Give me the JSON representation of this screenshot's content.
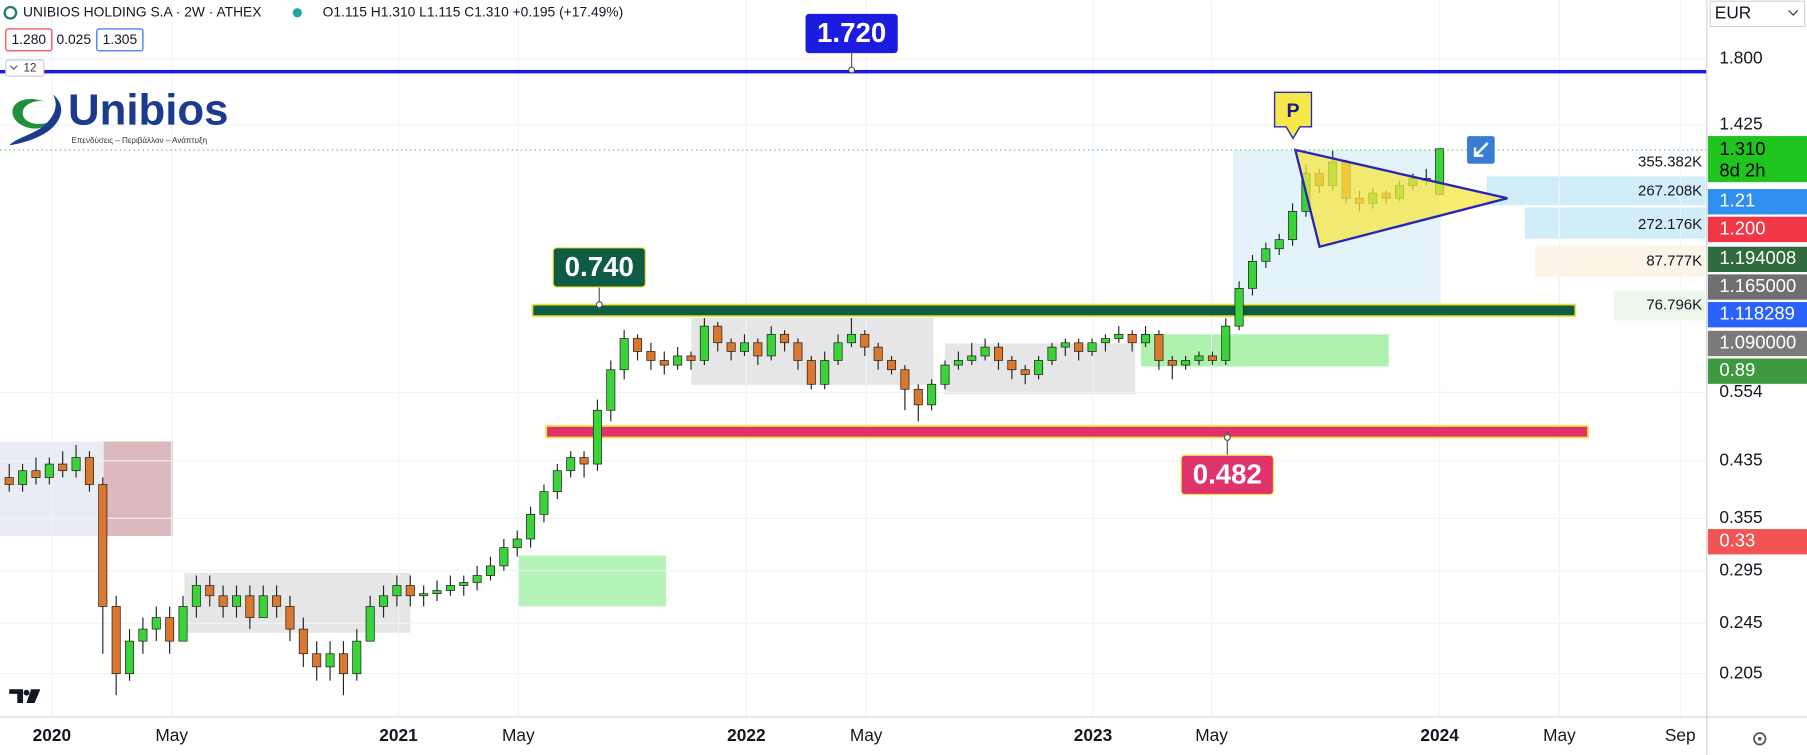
{
  "header": {
    "symbol": "UNIBIOS HOLDING S.A · 2W · ATHEX",
    "ohlc": "O1.115 H1.310 L1.115 C1.310 +0.195 (+17.49%)",
    "bid": "1.280",
    "spread": "0.025",
    "ask": "1.305",
    "indicators": "12"
  },
  "logo": {
    "name": "Unibios",
    "tagline": "Επενδύσεις – Περιβάλλον – Ανάπτυξη"
  },
  "currency": "EUR",
  "chart_data": {
    "type": "candlestick",
    "log_scale": true,
    "grid": true,
    "up_color": "#3ad43a",
    "down_color": "#d9782e",
    "ylim": [
      0.176,
      2.215
    ],
    "yticks": [
      {
        "value": 1.8,
        "label": "1.800"
      },
      1.425,
      0.554,
      0.435,
      0.355,
      0.295,
      0.245,
      0.205
    ],
    "xlim": [
      -0.69,
      126.98
    ],
    "xticks": [
      {
        "value": 3.19,
        "label": "2020"
      },
      {
        "value": 12.15,
        "label": "May"
      },
      {
        "value": 29.12,
        "label": "2021"
      },
      {
        "value": 38.08,
        "label": "May"
      },
      {
        "value": 55.14,
        "label": "2022"
      },
      {
        "value": 64.1,
        "label": "May"
      },
      {
        "value": 81.07,
        "label": "2023"
      },
      {
        "value": 89.94,
        "label": "May"
      },
      {
        "value": 107.0,
        "label": "2024"
      },
      {
        "value": 115.96,
        "label": "May"
      },
      {
        "value": 125.0,
        "label": "Sep"
      }
    ],
    "candles": [
      [
        0.41,
        0.43,
        0.39,
        0.4
      ],
      [
        0.4,
        0.43,
        0.39,
        0.42
      ],
      [
        0.42,
        0.44,
        0.4,
        0.41
      ],
      [
        0.41,
        0.44,
        0.4,
        0.43
      ],
      [
        0.43,
        0.45,
        0.41,
        0.42
      ],
      [
        0.42,
        0.46,
        0.41,
        0.44
      ],
      [
        0.44,
        0.45,
        0.39,
        0.4
      ],
      [
        0.4,
        0.41,
        0.22,
        0.26
      ],
      [
        0.26,
        0.27,
        0.19,
        0.205
      ],
      [
        0.205,
        0.24,
        0.2,
        0.23
      ],
      [
        0.23,
        0.25,
        0.22,
        0.24
      ],
      [
        0.24,
        0.26,
        0.23,
        0.25
      ],
      [
        0.25,
        0.26,
        0.22,
        0.23
      ],
      [
        0.23,
        0.27,
        0.23,
        0.26
      ],
      [
        0.26,
        0.29,
        0.25,
        0.28
      ],
      [
        0.28,
        0.29,
        0.26,
        0.27
      ],
      [
        0.27,
        0.28,
        0.25,
        0.26
      ],
      [
        0.26,
        0.28,
        0.25,
        0.27
      ],
      [
        0.27,
        0.28,
        0.24,
        0.25
      ],
      [
        0.25,
        0.28,
        0.25,
        0.27
      ],
      [
        0.27,
        0.28,
        0.25,
        0.26
      ],
      [
        0.26,
        0.27,
        0.23,
        0.24
      ],
      [
        0.24,
        0.25,
        0.21,
        0.22
      ],
      [
        0.22,
        0.23,
        0.2,
        0.21
      ],
      [
        0.21,
        0.23,
        0.2,
        0.22
      ],
      [
        0.22,
        0.23,
        0.19,
        0.205
      ],
      [
        0.205,
        0.24,
        0.2,
        0.23
      ],
      [
        0.23,
        0.27,
        0.23,
        0.26
      ],
      [
        0.26,
        0.28,
        0.25,
        0.27
      ],
      [
        0.27,
        0.29,
        0.26,
        0.28
      ],
      [
        0.28,
        0.29,
        0.26,
        0.27
      ],
      [
        0.27,
        0.28,
        0.26,
        0.272
      ],
      [
        0.272,
        0.285,
        0.265,
        0.275
      ],
      [
        0.275,
        0.29,
        0.27,
        0.28
      ],
      [
        0.28,
        0.29,
        0.27,
        0.283
      ],
      [
        0.283,
        0.3,
        0.275,
        0.29
      ],
      [
        0.29,
        0.31,
        0.285,
        0.3
      ],
      [
        0.3,
        0.33,
        0.295,
        0.32
      ],
      [
        0.32,
        0.34,
        0.31,
        0.33
      ],
      [
        0.33,
        0.37,
        0.32,
        0.36
      ],
      [
        0.36,
        0.4,
        0.35,
        0.39
      ],
      [
        0.39,
        0.43,
        0.38,
        0.42
      ],
      [
        0.42,
        0.45,
        0.41,
        0.44
      ],
      [
        0.44,
        0.45,
        0.41,
        0.43
      ],
      [
        0.43,
        0.54,
        0.42,
        0.52
      ],
      [
        0.52,
        0.62,
        0.5,
        0.6
      ],
      [
        0.6,
        0.69,
        0.58,
        0.67
      ],
      [
        0.67,
        0.68,
        0.62,
        0.64
      ],
      [
        0.64,
        0.66,
        0.6,
        0.62
      ],
      [
        0.62,
        0.64,
        0.59,
        0.61
      ],
      [
        0.61,
        0.65,
        0.6,
        0.63
      ],
      [
        0.63,
        0.64,
        0.6,
        0.62
      ],
      [
        0.62,
        0.72,
        0.61,
        0.7
      ],
      [
        0.7,
        0.71,
        0.64,
        0.66
      ],
      [
        0.66,
        0.67,
        0.62,
        0.64
      ],
      [
        0.64,
        0.68,
        0.63,
        0.66
      ],
      [
        0.66,
        0.67,
        0.61,
        0.63
      ],
      [
        0.63,
        0.7,
        0.62,
        0.68
      ],
      [
        0.68,
        0.69,
        0.64,
        0.66
      ],
      [
        0.66,
        0.67,
        0.6,
        0.62
      ],
      [
        0.62,
        0.63,
        0.56,
        0.57
      ],
      [
        0.57,
        0.64,
        0.56,
        0.62
      ],
      [
        0.62,
        0.68,
        0.61,
        0.66
      ],
      [
        0.66,
        0.72,
        0.65,
        0.68
      ],
      [
        0.68,
        0.69,
        0.63,
        0.65
      ],
      [
        0.65,
        0.66,
        0.6,
        0.62
      ],
      [
        0.62,
        0.63,
        0.59,
        0.6
      ],
      [
        0.6,
        0.61,
        0.52,
        0.56
      ],
      [
        0.56,
        0.57,
        0.5,
        0.53
      ],
      [
        0.53,
        0.58,
        0.52,
        0.57
      ],
      [
        0.57,
        0.62,
        0.56,
        0.61
      ],
      [
        0.61,
        0.64,
        0.6,
        0.62
      ],
      [
        0.62,
        0.66,
        0.61,
        0.63
      ],
      [
        0.63,
        0.67,
        0.62,
        0.65
      ],
      [
        0.65,
        0.66,
        0.6,
        0.62
      ],
      [
        0.62,
        0.63,
        0.58,
        0.6
      ],
      [
        0.6,
        0.61,
        0.57,
        0.59
      ],
      [
        0.59,
        0.63,
        0.58,
        0.62
      ],
      [
        0.62,
        0.66,
        0.61,
        0.65
      ],
      [
        0.65,
        0.67,
        0.63,
        0.66
      ],
      [
        0.66,
        0.67,
        0.62,
        0.64
      ],
      [
        0.64,
        0.67,
        0.63,
        0.66
      ],
      [
        0.66,
        0.68,
        0.64,
        0.67
      ],
      [
        0.67,
        0.7,
        0.66,
        0.68
      ],
      [
        0.68,
        0.69,
        0.64,
        0.66
      ],
      [
        0.66,
        0.7,
        0.65,
        0.68
      ],
      [
        0.68,
        0.69,
        0.6,
        0.62
      ],
      [
        0.62,
        0.63,
        0.58,
        0.61
      ],
      [
        0.61,
        0.63,
        0.6,
        0.62
      ],
      [
        0.62,
        0.64,
        0.61,
        0.63
      ],
      [
        0.63,
        0.64,
        0.61,
        0.62
      ],
      [
        0.62,
        0.72,
        0.61,
        0.7
      ],
      [
        0.7,
        0.82,
        0.69,
        0.8
      ],
      [
        0.8,
        0.9,
        0.78,
        0.88
      ],
      [
        0.88,
        0.94,
        0.86,
        0.92
      ],
      [
        0.92,
        0.97,
        0.9,
        0.95
      ],
      [
        0.95,
        1.08,
        0.93,
        1.05
      ],
      [
        1.05,
        1.24,
        1.03,
        1.2
      ],
      [
        1.2,
        1.22,
        1.12,
        1.15
      ],
      [
        1.15,
        1.3,
        1.13,
        1.25
      ],
      [
        1.25,
        1.26,
        1.08,
        1.1
      ],
      [
        1.1,
        1.13,
        1.05,
        1.08
      ],
      [
        1.08,
        1.14,
        1.06,
        1.12
      ],
      [
        1.12,
        1.13,
        1.08,
        1.1
      ],
      [
        1.1,
        1.17,
        1.09,
        1.15
      ],
      [
        1.15,
        1.2,
        1.13,
        1.18
      ],
      [
        1.18,
        1.22,
        1.15,
        1.17
      ],
      [
        1.115,
        1.31,
        1.115,
        1.31
      ]
    ],
    "levels": [
      {
        "value": 1.72,
        "label": "1.720",
        "color": "#1c1ce0"
      },
      {
        "value": 0.74,
        "label": "0.740",
        "color": "#0f5c45"
      },
      {
        "value": 0.482,
        "label": "0.482",
        "color": "#e0336b"
      }
    ],
    "pattern_label": "P",
    "price_badges": [
      {
        "label": "1.310",
        "sub": "8d 2h",
        "color": "#1fc41f"
      },
      {
        "label": "1.21",
        "color": "#2f8ff0"
      },
      {
        "label": "1.200",
        "color": "#f23645"
      },
      {
        "label": "1.194008",
        "color": "#2f6b3c"
      },
      {
        "label": "1.165000",
        "color": "#6f6f6f"
      },
      {
        "label": "1.118289",
        "color": "#2962ff"
      },
      {
        "label": "1.090000",
        "color": "#7a7a7a"
      },
      {
        "label": "0.89",
        "color": "#3e9a3e"
      },
      {
        "label": "0.33",
        "color": "#f25454"
      }
    ],
    "volume_labels": [
      "355.382K",
      "267.208K",
      "272.176K",
      "87.777K",
      "76.796K"
    ]
  }
}
